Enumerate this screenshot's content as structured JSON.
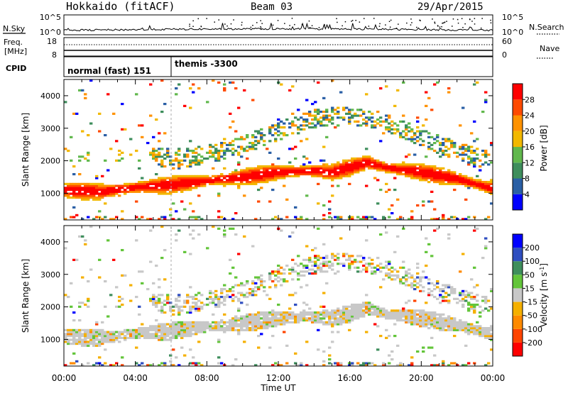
{
  "header": {
    "station": "Hokkaido (fitACF)",
    "beam": "Beam 03",
    "date": "29/Apr/2015"
  },
  "top_panels": {
    "nsky_label": "N.Sky",
    "nsky_ticks": [
      "10^5",
      "10^0"
    ],
    "nsearch_label": "N.Search",
    "nsearch_ticks": [
      "10^5",
      "10^0"
    ],
    "freq_label": "Freq.",
    "freq_unit": "[MHz]",
    "freq_ticks": [
      "18",
      "8"
    ],
    "nave_label": "Nave",
    "nave_ticks": [
      "60",
      "0"
    ],
    "cpid_label": "CPID",
    "cpid_segments": [
      {
        "label": "normal (fast) 151",
        "start_hour": 0,
        "end_hour": 6
      },
      {
        "label": "themis -3300",
        "start_hour": 6,
        "end_hour": 24
      }
    ]
  },
  "chart_data": [
    {
      "type": "heatmap",
      "name": "power",
      "ylabel": "Slant Range [km]",
      "ylim": [
        180,
        4500
      ],
      "yticks": [
        "1000",
        "2000",
        "3000",
        "4000"
      ],
      "xlim": [
        0,
        24
      ],
      "colorbar": {
        "label": "Power [dB]",
        "ticks": [
          "4",
          "8",
          "12",
          "16",
          "20",
          "24",
          "28"
        ],
        "bins": [
          "#0000ff",
          "#2a5fa5",
          "#3e8e5c",
          "#61b84d",
          "#f2b800",
          "#ff9200",
          "#ff4a00",
          "#ff0000"
        ]
      },
      "main_echo_band_km": [
        [
          0,
          1100
        ],
        [
          2,
          1050
        ],
        [
          4,
          1180
        ],
        [
          6,
          1260
        ],
        [
          8,
          1390
        ],
        [
          10,
          1500
        ],
        [
          12,
          1650
        ],
        [
          14,
          1700
        ],
        [
          15,
          1650
        ],
        [
          16,
          1800
        ],
        [
          17,
          1950
        ],
        [
          18,
          1800
        ],
        [
          20,
          1650
        ],
        [
          22,
          1450
        ],
        [
          24,
          1150
        ]
      ],
      "upper_echo_band_km": [
        [
          6,
          2000
        ],
        [
          9,
          2300
        ],
        [
          12,
          2900
        ],
        [
          14,
          3300
        ],
        [
          16,
          3400
        ],
        [
          18,
          3200
        ],
        [
          20,
          2700
        ],
        [
          22,
          2300
        ],
        [
          24,
          2000
        ]
      ]
    },
    {
      "type": "heatmap",
      "name": "velocity",
      "ylabel": "Slant Range [km]",
      "ylim": [
        180,
        4500
      ],
      "yticks": [
        "1000",
        "2000",
        "3000",
        "4000"
      ],
      "xlim": [
        0,
        24
      ],
      "colorbar": {
        "label": "Velocity [m s",
        "label_exp": "-1",
        "label_end": "]",
        "ticks": [
          "200",
          "100",
          "50",
          "15",
          "-15",
          "-50",
          "-100",
          "-200"
        ],
        "bins": [
          "#0000ff",
          "#2f4ec0",
          "#3e8e5c",
          "#63c53a",
          "#c8c8c8",
          "#f5b000",
          "#ff8a00",
          "#ff4400",
          "#ff0000"
        ]
      }
    }
  ],
  "time_axis": {
    "ticks": [
      "00:00",
      "04:00",
      "08:00",
      "12:00",
      "16:00",
      "20:00",
      "00:00"
    ],
    "label": "Time UT"
  }
}
